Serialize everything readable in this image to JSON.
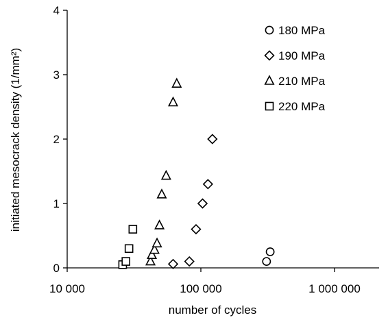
{
  "chart_data": {
    "type": "scatter",
    "title": "",
    "xlabel": "number of cycles",
    "ylabel": "initiated mesocrack density (1/mm²)",
    "x_scale": "log",
    "xlim": [
      10000,
      1000000
    ],
    "ylim": [
      0,
      4
    ],
    "x_ticks": [
      {
        "value": 10000,
        "label": "10 000"
      },
      {
        "value": 100000,
        "label": "100 000"
      },
      {
        "value": 1000000,
        "label": "1 000 000"
      }
    ],
    "y_ticks": [
      {
        "value": 0,
        "label": "0"
      },
      {
        "value": 1,
        "label": "1"
      },
      {
        "value": 2,
        "label": "2"
      },
      {
        "value": 3,
        "label": "3"
      },
      {
        "value": 4,
        "label": "4"
      }
    ],
    "grid": false,
    "legend_position": "top-right",
    "series": [
      {
        "name": "180 MPa",
        "marker": "circle",
        "points": [
          [
            310000,
            0.1
          ],
          [
            330000,
            0.25
          ]
        ]
      },
      {
        "name": "190 MPa",
        "marker": "diamond",
        "points": [
          [
            62000,
            0.06
          ],
          [
            82000,
            0.1
          ],
          [
            92000,
            0.6
          ],
          [
            103000,
            1.0
          ],
          [
            113000,
            1.3
          ],
          [
            122000,
            2.0
          ]
        ]
      },
      {
        "name": "210 MPa",
        "marker": "triangle",
        "points": [
          [
            42000,
            0.1
          ],
          [
            43000,
            0.2
          ],
          [
            45000,
            0.28
          ],
          [
            47000,
            0.38
          ],
          [
            49000,
            0.66
          ],
          [
            51000,
            1.14
          ],
          [
            55000,
            1.43
          ],
          [
            62000,
            2.57
          ],
          [
            66000,
            2.86
          ]
        ]
      },
      {
        "name": "220 MPa",
        "marker": "square",
        "points": [
          [
            26000,
            0.05
          ],
          [
            27500,
            0.1
          ],
          [
            29000,
            0.3
          ],
          [
            31000,
            0.6
          ]
        ]
      }
    ]
  }
}
